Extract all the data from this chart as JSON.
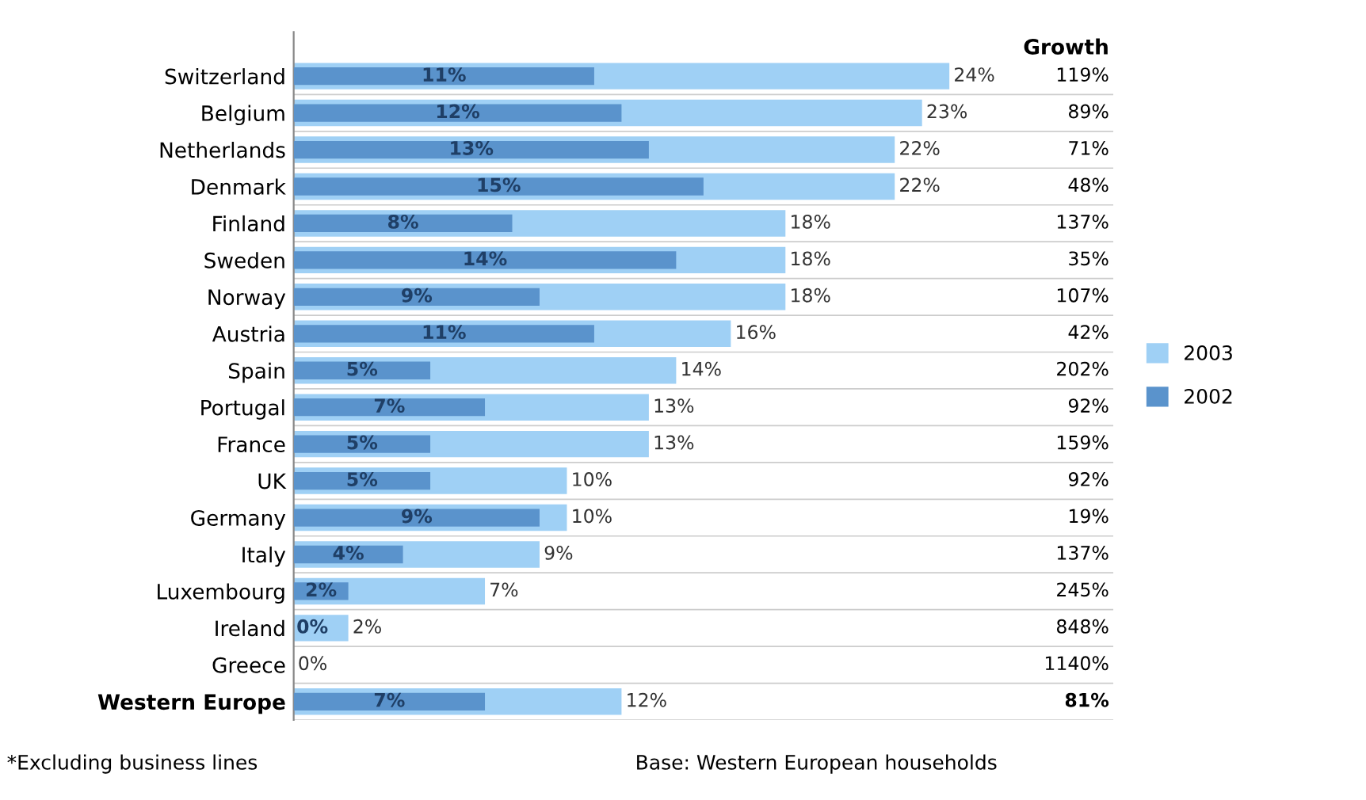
{
  "chart_data": {
    "type": "bar",
    "orientation": "horizontal",
    "categories": [
      "Switzerland",
      "Belgium",
      "Netherlands",
      "Denmark",
      "Finland",
      "Sweden",
      "Norway",
      "Austria",
      "Spain",
      "Portugal",
      "France",
      "UK",
      "Germany",
      "Italy",
      "Luxembourg",
      "Ireland",
      "Greece",
      "Western Europe"
    ],
    "series": [
      {
        "name": "2003",
        "color": "#9fd0f5",
        "values": [
          24,
          23,
          22,
          22,
          18,
          18,
          18,
          16,
          14,
          13,
          13,
          10,
          10,
          9,
          7,
          2,
          0,
          12
        ],
        "value_labels": [
          "24%",
          "23%",
          "22%",
          "22%",
          "18%",
          "18%",
          "18%",
          "16%",
          "14%",
          "13%",
          "13%",
          "10%",
          "10%",
          "9%",
          "7%",
          "2%",
          "0%",
          "12%"
        ]
      },
      {
        "name": "2002",
        "color": "#5a93cc",
        "values": [
          11,
          12,
          13,
          15,
          8,
          14,
          9,
          11,
          5,
          7,
          5,
          5,
          9,
          4,
          2,
          0,
          null,
          7
        ],
        "value_labels": [
          "11%",
          "12%",
          "13%",
          "15%",
          "8%",
          "14%",
          "9%",
          "11%",
          "5%",
          "7%",
          "5%",
          "5%",
          "9%",
          "4%",
          "2%",
          "0%",
          null,
          "7%"
        ]
      }
    ],
    "legend": "right",
    "grid": false,
    "tick_labels": "y",
    "annotations": [
      "Growth",
      "119%",
      "89%",
      "71%",
      "48%",
      "137%",
      "35%",
      "107%",
      "42%",
      "202%",
      "92%",
      "159%",
      "92%",
      "19%",
      "137%",
      "245%",
      "848%",
      "1140%",
      "81%",
      "*Excluding business lines",
      "Base: Western European households"
    ]
  }
}
